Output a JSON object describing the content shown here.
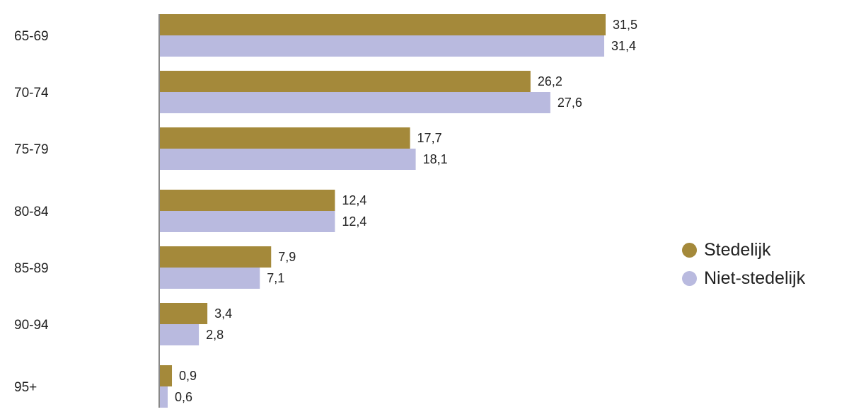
{
  "chart_data": {
    "type": "bar",
    "orientation": "horizontal",
    "categories": [
      "65-69",
      "70-74",
      "75-79",
      "80-84",
      "85-89",
      "90-94",
      "95+"
    ],
    "series": [
      {
        "name": "Stedelijk",
        "color": "#a4893a",
        "values": [
          31.5,
          26.2,
          17.7,
          12.4,
          7.9,
          3.4,
          0.9
        ],
        "labels": [
          "31,5",
          "26,2",
          "17,7",
          "12,4",
          "7,9",
          "3,4",
          "0,9"
        ]
      },
      {
        "name": "Niet-stedelijk",
        "color": "#b9badf",
        "values": [
          31.4,
          27.6,
          18.1,
          12.4,
          7.1,
          2.8,
          0.6
        ],
        "labels": [
          "31,4",
          "27,6",
          "18,1",
          "12,4",
          "7,1",
          "2,8",
          "0,6"
        ]
      }
    ],
    "xlim": [
      0,
      31.5
    ],
    "grid": false,
    "legend_position": "right"
  }
}
